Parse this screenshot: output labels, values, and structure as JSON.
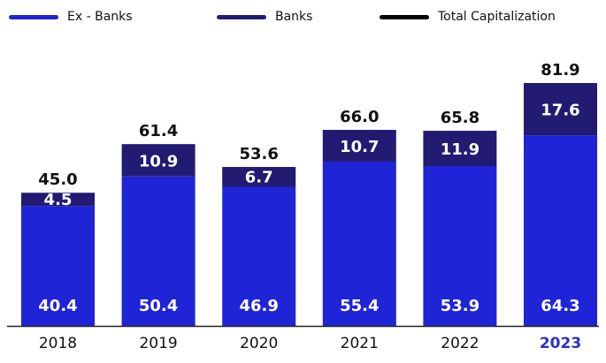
{
  "legend": {
    "ex_banks": "Ex - Banks",
    "banks": "Banks",
    "total": "Total Capitalization"
  },
  "colors": {
    "ex_banks": "#1f24d6",
    "banks": "#221b72",
    "total": "#000000",
    "highlight_tick": "#2a32c8"
  },
  "chart_data": {
    "type": "bar",
    "stacked": true,
    "categories": [
      "2018",
      "2019",
      "2020",
      "2021",
      "2022",
      "2023"
    ],
    "highlighted_category": "2023",
    "series": [
      {
        "name": "Ex - Banks",
        "values": [
          40.4,
          50.4,
          46.9,
          55.4,
          53.9,
          64.3
        ]
      },
      {
        "name": "Banks",
        "values": [
          4.5,
          10.9,
          6.7,
          10.7,
          11.9,
          17.6
        ]
      }
    ],
    "totals": {
      "name": "Total Capitalization",
      "values": [
        45.0,
        61.4,
        53.6,
        66.0,
        65.8,
        81.9
      ]
    },
    "ylim": [
      0,
      81.9
    ],
    "grid": false,
    "legend_position": "top"
  }
}
